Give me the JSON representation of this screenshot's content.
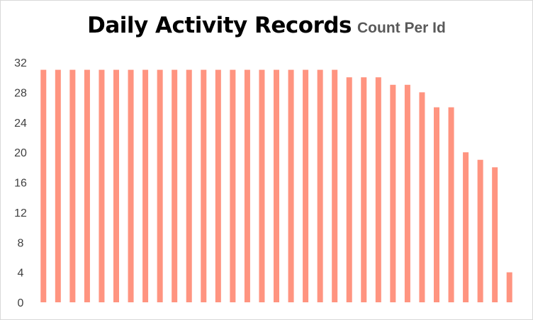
{
  "chart_data": {
    "type": "bar",
    "title": "Daily Activity Records",
    "subtitle": "Count Per Id",
    "xlabel": "",
    "ylabel": "",
    "ylim": [
      0,
      32
    ],
    "yticks": [
      "0",
      "4",
      "8",
      "12",
      "16",
      "20",
      "24",
      "28",
      "32"
    ],
    "grid": false,
    "legend": "none",
    "bar_color": "#FF9480",
    "values": [
      31,
      31,
      31,
      31,
      31,
      31,
      31,
      31,
      31,
      31,
      31,
      31,
      31,
      31,
      31,
      31,
      31,
      31,
      31,
      31,
      31,
      30,
      30,
      30,
      29,
      29,
      28,
      26,
      26,
      20,
      19,
      18,
      4
    ]
  }
}
